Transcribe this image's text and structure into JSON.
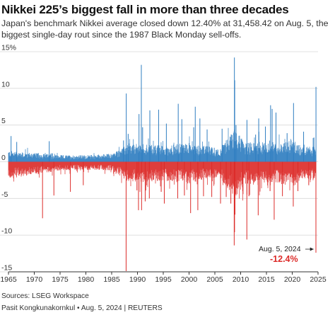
{
  "header": {
    "title": "Nikkei 225’s biggest fall in more than three decades",
    "subtitle_line1": "Japan's benchmark Nikkei average closed down 12.40% at 31,458.42 on Aug. 5, the",
    "subtitle_line2": "biggest single-day rout since the 1987 Black Monday sell-offs."
  },
  "chart_data": {
    "type": "bar",
    "description_series": "daily percentage change",
    "x_range": [
      1965,
      2025
    ],
    "ylim": [
      -15,
      15
    ],
    "y_ticks": [
      {
        "value": 15,
        "label": "15%"
      },
      {
        "value": 10,
        "label": "10"
      },
      {
        "value": 5,
        "label": "5"
      },
      {
        "value": 0,
        "label": "0"
      },
      {
        "value": -5,
        "label": "-5"
      },
      {
        "value": -10,
        "label": "-10"
      },
      {
        "value": -15,
        "label": "-15"
      }
    ],
    "x_ticks": [
      1965,
      1970,
      1975,
      1980,
      1985,
      1990,
      1995,
      2000,
      2005,
      2010,
      2015,
      2020,
      2025
    ],
    "colors": {
      "positive": "#2f7ec1",
      "negative": "#dc2c2a",
      "grid": "#d9d9d9",
      "axis": "#333333",
      "annotation": "#dc2c2a"
    },
    "grid": true,
    "envelope": [
      {
        "year": 1965,
        "up": 1.5,
        "down": -2.3
      },
      {
        "year": 1970,
        "up": 1.2,
        "down": -1.8
      },
      {
        "year": 1975,
        "up": 0.9,
        "down": -1.2
      },
      {
        "year": 1980,
        "up": 0.9,
        "down": -1.1
      },
      {
        "year": 1985,
        "up": 1.1,
        "down": -1.2
      },
      {
        "year": 1988,
        "up": 2.3,
        "down": -2.6
      },
      {
        "year": 1991,
        "up": 2.5,
        "down": -2.8
      },
      {
        "year": 1995,
        "up": 2.2,
        "down": -2.6
      },
      {
        "year": 2000,
        "up": 2.6,
        "down": -3.0
      },
      {
        "year": 2003,
        "up": 2.2,
        "down": -2.4
      },
      {
        "year": 2006,
        "up": 1.8,
        "down": -2.1
      },
      {
        "year": 2008.8,
        "up": 4.5,
        "down": -5.0
      },
      {
        "year": 2011,
        "up": 2.6,
        "down": -3.0
      },
      {
        "year": 2013.5,
        "up": 2.8,
        "down": -3.2
      },
      {
        "year": 2016,
        "up": 2.4,
        "down": -2.8
      },
      {
        "year": 2020.2,
        "up": 3.0,
        "down": -3.4
      },
      {
        "year": 2022,
        "up": 2.0,
        "down": -2.3
      },
      {
        "year": 2024.6,
        "up": 2.2,
        "down": -2.6
      }
    ],
    "spikes": [
      {
        "date": 1965.5,
        "value": 3.5
      },
      {
        "date": 1966.6,
        "value": 2.7
      },
      {
        "date": 1971.6,
        "value": -7.7
      },
      {
        "date": 1972.9,
        "value": 2.8
      },
      {
        "date": 1973.8,
        "value": -4.6
      },
      {
        "date": 1977.0,
        "value": -4.1
      },
      {
        "date": 1979.5,
        "value": -3.2
      },
      {
        "date": 1987.3,
        "value": 2.9
      },
      {
        "date": 1987.8,
        "value": -14.9
      },
      {
        "date": 1987.83,
        "value": 9.3
      },
      {
        "date": 1988.2,
        "value": 3.8
      },
      {
        "date": 1989.9,
        "value": -3.9
      },
      {
        "date": 1990.3,
        "value": 6.5
      },
      {
        "date": 1990.2,
        "value": -6.6
      },
      {
        "date": 1990.75,
        "value": 13.2
      },
      {
        "date": 1990.8,
        "value": -6.6
      },
      {
        "date": 1991.0,
        "value": 4.7
      },
      {
        "date": 1991.5,
        "value": -5.4
      },
      {
        "date": 1992.4,
        "value": 7.0
      },
      {
        "date": 1992.3,
        "value": -5.0
      },
      {
        "date": 1994.1,
        "value": 7.1
      },
      {
        "date": 1994.6,
        "value": -4.1
      },
      {
        "date": 1995.2,
        "value": -5.7
      },
      {
        "date": 1995.6,
        "value": 5.2
      },
      {
        "date": 1997.9,
        "value": 7.9
      },
      {
        "date": 1997.8,
        "value": -5.0
      },
      {
        "date": 1998.6,
        "value": 5.8
      },
      {
        "date": 1999.1,
        "value": -4.6
      },
      {
        "date": 2000.3,
        "value": -7.0
      },
      {
        "date": 2000.9,
        "value": 4.7
      },
      {
        "date": 2001.2,
        "value": 7.5
      },
      {
        "date": 2001.7,
        "value": -6.6
      },
      {
        "date": 2002.1,
        "value": 5.9
      },
      {
        "date": 2002.8,
        "value": -4.7
      },
      {
        "date": 2003.5,
        "value": 4.4
      },
      {
        "date": 2004.4,
        "value": -4.8
      },
      {
        "date": 2006.1,
        "value": -5.7
      },
      {
        "date": 2006.4,
        "value": 4.5
      },
      {
        "date": 2007.2,
        "value": -4.8
      },
      {
        "date": 2008.1,
        "value": -5.7
      },
      {
        "date": 2008.75,
        "value": -11.4
      },
      {
        "date": 2008.79,
        "value": 14.2
      },
      {
        "date": 2008.82,
        "value": -9.6
      },
      {
        "date": 2008.85,
        "value": 11.1
      },
      {
        "date": 2008.9,
        "value": -7.2
      },
      {
        "date": 2009.1,
        "value": 5.0
      },
      {
        "date": 2010.4,
        "value": -4.0
      },
      {
        "date": 2011.2,
        "value": -10.6
      },
      {
        "date": 2011.22,
        "value": 5.7
      },
      {
        "date": 2011.6,
        "value": -4.7
      },
      {
        "date": 2012.9,
        "value": 3.7
      },
      {
        "date": 2013.4,
        "value": -7.3
      },
      {
        "date": 2013.5,
        "value": 5.9
      },
      {
        "date": 2014.8,
        "value": 4.8
      },
      {
        "date": 2015.7,
        "value": -4.0
      },
      {
        "date": 2015.8,
        "value": 7.7
      },
      {
        "date": 2016.1,
        "value": 7.2
      },
      {
        "date": 2016.5,
        "value": -7.9
      },
      {
        "date": 2016.85,
        "value": 6.7
      },
      {
        "date": 2018.1,
        "value": -4.7
      },
      {
        "date": 2019.0,
        "value": 3.9
      },
      {
        "date": 2020.2,
        "value": -6.1
      },
      {
        "date": 2020.25,
        "value": 8.0
      },
      {
        "date": 2021.1,
        "value": -4.0
      },
      {
        "date": 2022.2,
        "value": 4.1
      },
      {
        "date": 2023.2,
        "value": -3.2
      },
      {
        "date": 2024.2,
        "value": 3.3
      },
      {
        "date": 2024.59,
        "value": -12.4
      },
      {
        "date": 2024.6,
        "value": 10.2
      }
    ],
    "annotation": {
      "date_label": "Aug. 5, 2024",
      "value_label": "-12.4%",
      "value": -12.4
    }
  },
  "footer": {
    "sources": "Sources: LSEG Workspace",
    "credit": "Pasit Kongkunakornkul • Aug. 5, 2024 | REUTERS"
  }
}
